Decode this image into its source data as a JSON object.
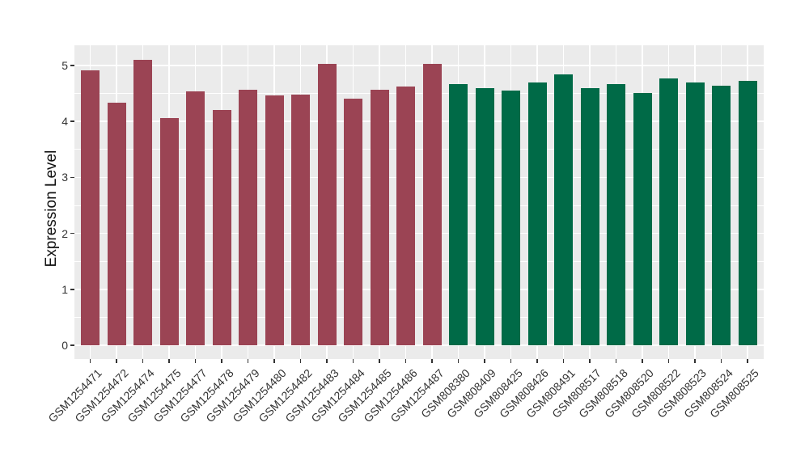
{
  "chart_data": {
    "type": "bar",
    "title": "",
    "xlabel": "",
    "ylabel": "Expression Level",
    "ylim": [
      0,
      5.36
    ],
    "yticks_major": [
      0,
      1,
      2,
      3,
      4,
      5
    ],
    "yticks_minor": [
      0.5,
      1.5,
      2.5,
      3.5,
      4.5
    ],
    "grid": "white major and minor horizontal gridlines, white vertical gridline at each category center, gray panel background",
    "legend_position": "none",
    "categories": [
      "GSM1254471",
      "GSM1254472",
      "GSM1254474",
      "GSM1254475",
      "GSM1254477",
      "GSM1254478",
      "GSM1254479",
      "GSM1254480",
      "GSM1254482",
      "GSM1254483",
      "GSM1254484",
      "GSM1254485",
      "GSM1254486",
      "GSM1254487",
      "GSM808380",
      "GSM808409",
      "GSM808425",
      "GSM808426",
      "GSM808491",
      "GSM808517",
      "GSM808518",
      "GSM808520",
      "GSM808522",
      "GSM808523",
      "GSM808524",
      "GSM808525"
    ],
    "values": [
      4.92,
      4.34,
      5.1,
      4.06,
      4.54,
      4.21,
      4.56,
      4.47,
      4.48,
      5.03,
      4.41,
      4.57,
      4.63,
      5.03,
      4.67,
      4.59,
      4.55,
      4.69,
      4.84,
      4.6,
      4.67,
      4.51,
      4.77,
      4.7,
      4.64,
      4.73
    ],
    "groups": [
      0,
      0,
      0,
      0,
      0,
      0,
      0,
      0,
      0,
      0,
      0,
      0,
      0,
      0,
      1,
      1,
      1,
      1,
      1,
      1,
      1,
      1,
      1,
      1,
      1,
      1
    ],
    "series": [
      {
        "name": "GSM1254471-GSM1254487",
        "color": "#9B4454"
      },
      {
        "name": "GSM808380-GSM808525",
        "color": "#006A47"
      }
    ],
    "colors": {
      "panel_background": "#EBEBEB",
      "figure_background": "#FFFFFF",
      "gridline": "#FFFFFF",
      "tick_mark": "#333333",
      "tick_text": "#333333",
      "axis_title_text": "#111111"
    }
  }
}
